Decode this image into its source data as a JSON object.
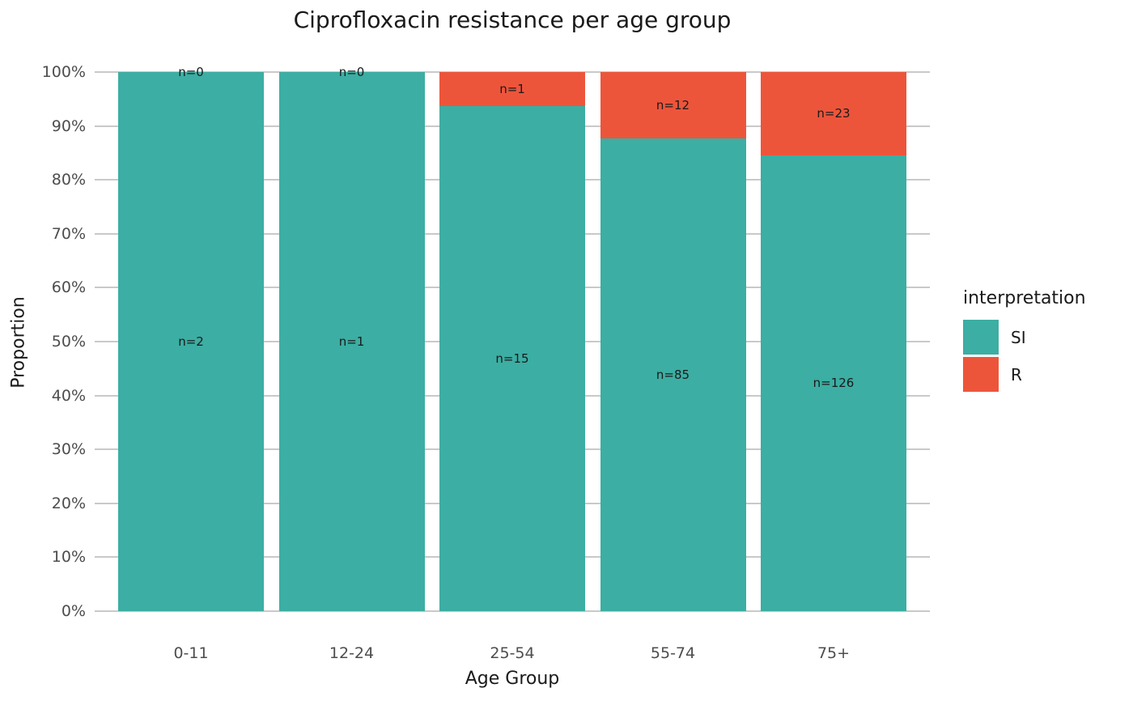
{
  "colors": {
    "si": "#3CAEA3",
    "r": "#ED553B",
    "grid": "#C9C9C9",
    "axis_text": "#4D4D4D",
    "text": "#1A1A1A",
    "background": "#FFFFFF"
  },
  "chart_data": {
    "type": "bar",
    "subtype": "stacked-100-percent",
    "title": "Ciprofloxacin resistance per age group",
    "xlabel": "Age Group",
    "ylabel": "Proportion",
    "categories": [
      "0-11",
      "12-24",
      "25-54",
      "55-74",
      "75+"
    ],
    "series": [
      {
        "name": "SI",
        "color": "#3CAEA3",
        "counts": [
          2,
          1,
          15,
          85,
          126
        ],
        "labels": [
          "n=2",
          "n=1",
          "n=15",
          "n=85",
          "n=126"
        ],
        "percent_of_total": [
          100,
          100,
          93.75,
          87.63,
          84.56
        ]
      },
      {
        "name": "R",
        "color": "#ED553B",
        "counts": [
          0,
          0,
          1,
          12,
          23
        ],
        "labels": [
          "n=0",
          "n=0",
          "n=1",
          "n=12",
          "n=23"
        ],
        "percent_of_total": [
          0,
          0,
          6.25,
          12.37,
          15.44
        ]
      }
    ],
    "y_ticks": [
      "0%",
      "10%",
      "20%",
      "30%",
      "40%",
      "50%",
      "60%",
      "70%",
      "80%",
      "90%",
      "100%"
    ],
    "ylim": [
      0,
      100
    ],
    "grid": true,
    "legend": {
      "title": "interpretation",
      "entries": [
        "SI",
        "R"
      ],
      "position": "right"
    }
  }
}
